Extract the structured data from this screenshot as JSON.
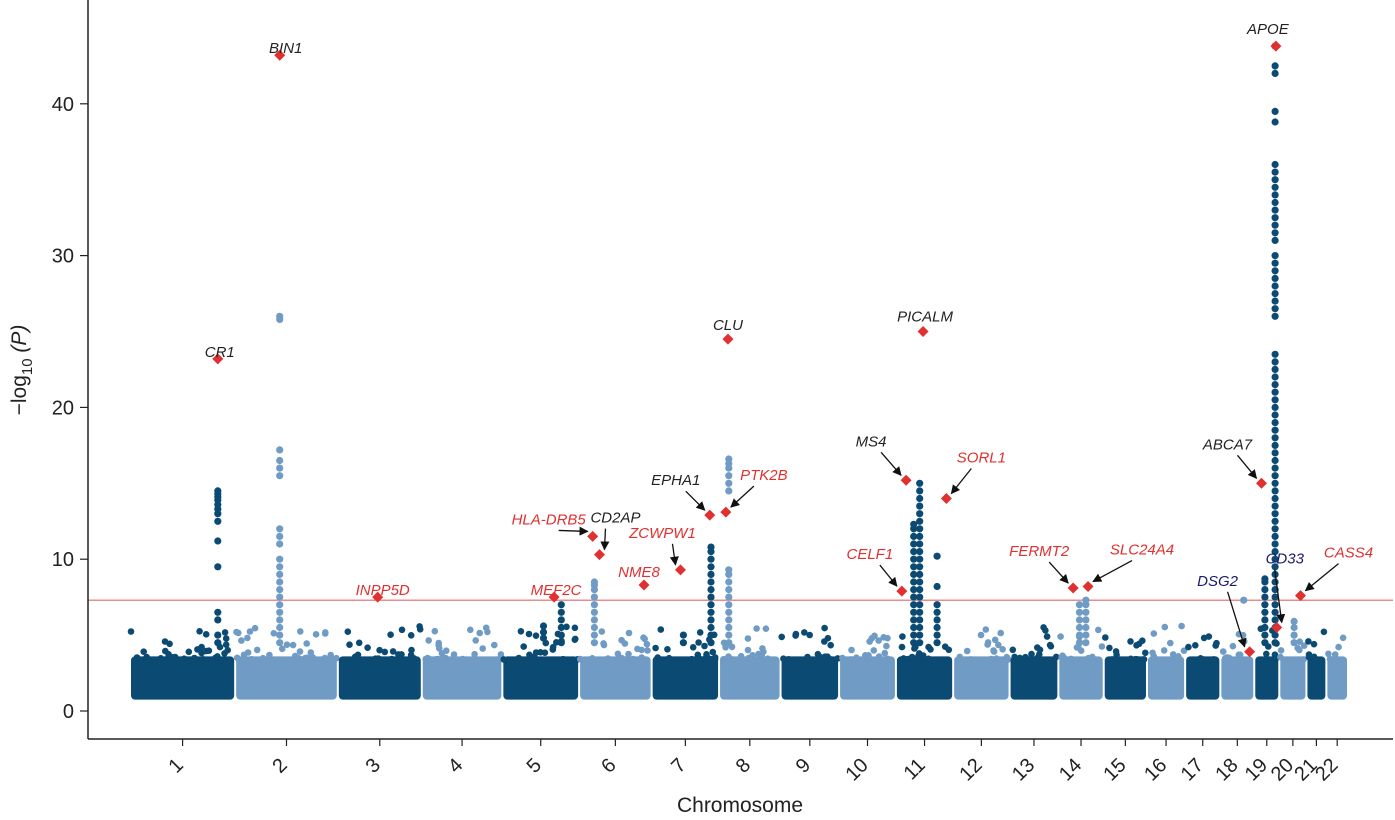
{
  "chart_data": {
    "type": "scatter",
    "subtype": "manhattan",
    "xlabel": "Chromosome",
    "ylabel_prefix": "−log",
    "ylabel_sub": "10",
    "ylabel_suffix": " (P)",
    "ylim": [
      0,
      46
    ],
    "yticks": [
      0,
      10,
      20,
      30,
      40
    ],
    "significance_line": 7.3,
    "grid": false,
    "colors": {
      "dark": "#0b4a73",
      "light": "#6f9bc4",
      "significance": "#e06666",
      "highlight": "#e03030",
      "label_red": "#e03030",
      "label_black": "#222222",
      "label_navy": "#1a1a6e"
    },
    "chromosomes": [
      {
        "label": "1",
        "start": 0,
        "end": 248,
        "color": "dark"
      },
      {
        "label": "2",
        "start": 248,
        "end": 490,
        "color": "light"
      },
      {
        "label": "3",
        "start": 490,
        "end": 688,
        "color": "dark"
      },
      {
        "label": "4",
        "start": 688,
        "end": 878,
        "color": "light"
      },
      {
        "label": "5",
        "start": 878,
        "end": 1059,
        "color": "dark"
      },
      {
        "label": "6",
        "start": 1059,
        "end": 1230,
        "color": "light"
      },
      {
        "label": "7",
        "start": 1230,
        "end": 1389,
        "color": "dark"
      },
      {
        "label": "8",
        "start": 1389,
        "end": 1534,
        "color": "light"
      },
      {
        "label": "9",
        "start": 1534,
        "end": 1672,
        "color": "dark"
      },
      {
        "label": "10",
        "start": 1672,
        "end": 1806,
        "color": "light"
      },
      {
        "label": "11",
        "start": 1806,
        "end": 1941,
        "color": "dark"
      },
      {
        "label": "12",
        "start": 1941,
        "end": 2074,
        "color": "light"
      },
      {
        "label": "13",
        "start": 2074,
        "end": 2189,
        "color": "dark"
      },
      {
        "label": "14",
        "start": 2189,
        "end": 2296,
        "color": "light"
      },
      {
        "label": "15",
        "start": 2296,
        "end": 2398,
        "color": "dark"
      },
      {
        "label": "16",
        "start": 2398,
        "end": 2488,
        "color": "light"
      },
      {
        "label": "17",
        "start": 2488,
        "end": 2571,
        "color": "dark"
      },
      {
        "label": "18",
        "start": 2571,
        "end": 2651,
        "color": "light"
      },
      {
        "label": "19",
        "start": 2651,
        "end": 2710,
        "color": "dark"
      },
      {
        "label": "20",
        "start": 2710,
        "end": 2774,
        "color": "light"
      },
      {
        "label": "21",
        "start": 2774,
        "end": 2821,
        "color": "dark"
      },
      {
        "label": "22",
        "start": 2821,
        "end": 2872,
        "color": "light"
      }
    ],
    "peaks": [
      {
        "pos": 207,
        "values": [
          4.5,
          5.0,
          6.0,
          6.5,
          9.5,
          11.2,
          12.5,
          13.0,
          13.3,
          13.6,
          13.9,
          14.1,
          14.3,
          14.5
        ]
      },
      {
        "pos": 353,
        "values": [
          4.5,
          5.0,
          5.5,
          6.0,
          6.5,
          7.0,
          7.5,
          8.0,
          8.5,
          9.0,
          9.5,
          10.0,
          11.0,
          11.5,
          12.0,
          15.5,
          16.0,
          16.5,
          17.2,
          25.8,
          26.0
        ]
      },
      {
        "pos": 975,
        "values": [
          4.8,
          5.2,
          5.6
        ]
      },
      {
        "pos": 1017,
        "values": [
          4.5,
          5.0,
          5.5,
          6.0,
          6.5,
          7.0
        ]
      },
      {
        "pos": 1095,
        "values": [
          4.5,
          5.0,
          5.5,
          6.0,
          6.5,
          7.0,
          7.5,
          8.0,
          8.3,
          8.5
        ]
      },
      {
        "pos": 1305,
        "values": [
          4.5,
          5.0
        ]
      },
      {
        "pos": 1370,
        "values": [
          4.5,
          5.0,
          5.5,
          6.0,
          6.5,
          7.0,
          7.5,
          8.0,
          8.5,
          9.0,
          9.5,
          10.0,
          10.5,
          10.8
        ]
      },
      {
        "pos": 1412,
        "values": [
          4.5,
          5.0,
          5.5,
          6.0,
          6.5,
          7.0,
          7.5,
          8.0,
          8.5,
          9.0,
          9.3,
          14.5,
          15.0,
          15.5,
          16.0,
          16.3,
          16.6
        ]
      },
      {
        "pos": 1848,
        "values": [
          4.5,
          5.0,
          5.5,
          6.0,
          6.5,
          7.0,
          7.5,
          8.0,
          8.5,
          9.0,
          9.5,
          10.0,
          10.5,
          11.0,
          11.5,
          12.0,
          12.3
        ]
      },
      {
        "pos": 1862,
        "values": [
          4.5,
          5.0,
          5.5,
          6.0,
          6.5,
          7.0,
          7.5,
          8.0,
          8.5,
          9.0,
          9.5,
          10.0,
          10.5,
          11.0,
          11.5,
          12.0,
          12.5,
          13.0,
          13.5,
          14.0,
          14.5,
          15.0
        ]
      },
      {
        "pos": 1903,
        "values": [
          4.5,
          5.0,
          5.5,
          6.0,
          6.5,
          7.0,
          8.2,
          10.2
        ]
      },
      {
        "pos": 2239,
        "values": [
          4.5,
          5.0,
          5.5,
          6.0,
          6.5,
          7.0
        ]
      },
      {
        "pos": 2254,
        "values": [
          4.5,
          5.0,
          5.5,
          6.0,
          6.5,
          7.0,
          7.3
        ]
      },
      {
        "pos": 2626,
        "values": [
          7.3
        ]
      },
      {
        "pos": 2676,
        "values": [
          4.5,
          5.0,
          5.5,
          6.0,
          6.5,
          7.0,
          7.5,
          8.0,
          8.5,
          8.7
        ]
      },
      {
        "pos": 2700,
        "values": [
          4.5,
          5.0,
          5.5,
          6.0,
          6.5,
          7.0,
          7.5,
          8.0,
          8.5,
          9.0,
          9.5,
          10.0,
          10.5,
          11.0,
          11.5,
          12.0,
          12.5,
          13.0,
          13.5,
          14.0,
          14.5,
          15.0,
          15.5,
          16.0,
          16.5,
          17.0,
          17.5,
          18.0,
          18.5,
          19.0,
          19.5,
          20.0,
          20.5,
          21.0,
          21.5,
          22.0,
          22.5,
          23.0,
          23.5,
          26.0,
          26.5,
          27.0,
          27.5,
          28.0,
          28.5,
          29.0,
          29.5,
          30.0,
          31.0,
          31.5,
          32.0,
          32.5,
          33.0,
          33.5,
          34.0,
          34.5,
          35.0,
          35.5,
          36.0,
          38.8,
          39.5,
          42.0,
          42.5,
          43.8
        ]
      },
      {
        "pos": 2745,
        "values": [
          4.5,
          5.0,
          5.5,
          5.9
        ]
      }
    ],
    "genes": [
      {
        "name": "BIN1",
        "pos": 353,
        "value": 43.2,
        "color": "label_black",
        "label_dx": 6,
        "label_dy": -2,
        "arrow": false
      },
      {
        "name": "CR1",
        "pos": 207,
        "value": 23.2,
        "color": "label_black",
        "label_dx": 2,
        "label_dy": -2,
        "arrow": false
      },
      {
        "name": "INPP5D",
        "pos": 584,
        "value": 7.5,
        "color": "label_red",
        "label_dx": 5,
        "label_dy": -2,
        "arrow": false
      },
      {
        "name": "MEF2C",
        "pos": 1000,
        "value": 7.5,
        "color": "label_red",
        "label_dx": 2,
        "label_dy": -2,
        "arrow": false
      },
      {
        "name": "HLA-DRB5",
        "pos": 1091,
        "value": 11.5,
        "color": "label_red",
        "label_dx": -44,
        "label_dy": -12,
        "arrow": true
      },
      {
        "name": "CD2AP",
        "pos": 1107,
        "value": 10.3,
        "color": "label_black",
        "label_dx": 16,
        "label_dy": -32,
        "arrow": true
      },
      {
        "name": "EPHA1",
        "pos": 1367,
        "value": 12.9,
        "color": "label_black",
        "label_dx": -34,
        "label_dy": -30,
        "arrow": true
      },
      {
        "name": "PTK2B",
        "pos": 1405,
        "value": 13.1,
        "color": "label_red",
        "label_dx": 38,
        "label_dy": -32,
        "arrow": true
      },
      {
        "name": "ZCWPW1",
        "pos": 1298,
        "value": 9.3,
        "color": "label_red",
        "label_dx": -18,
        "label_dy": -32,
        "arrow": true
      },
      {
        "name": "NME8",
        "pos": 1212,
        "value": 8.3,
        "color": "label_red",
        "label_dx": -5,
        "label_dy": -8,
        "arrow": false
      },
      {
        "name": "CLU",
        "pos": 1410,
        "value": 24.5,
        "color": "label_black",
        "label_dx": 0,
        "label_dy": -9,
        "arrow": false
      },
      {
        "name": "PICALM",
        "pos": 1870,
        "value": 25.0,
        "color": "label_black",
        "label_dx": 2,
        "label_dy": -10,
        "arrow": false
      },
      {
        "name": "MS4",
        "pos": 1830,
        "value": 15.2,
        "color": "label_black",
        "label_dx": -35,
        "label_dy": -34,
        "arrow": true
      },
      {
        "name": "SORL1",
        "pos": 1925,
        "value": 14.0,
        "color": "label_red",
        "label_dx": 35,
        "label_dy": -36,
        "arrow": true
      },
      {
        "name": "CELF1",
        "pos": 1820,
        "value": 7.9,
        "color": "label_red",
        "label_dx": -32,
        "label_dy": -32,
        "arrow": true
      },
      {
        "name": "FERMT2",
        "pos": 2224,
        "value": 8.1,
        "color": "label_red",
        "label_dx": -34,
        "label_dy": -32,
        "arrow": true
      },
      {
        "name": "SLC24A4",
        "pos": 2259,
        "value": 8.2,
        "color": "label_red",
        "label_dx": 54,
        "label_dy": -32,
        "arrow": true
      },
      {
        "name": "DSG2",
        "pos": 2640,
        "value": 3.9,
        "color": "label_navy",
        "label_dx": -32,
        "label_dy": -66,
        "arrow": true
      },
      {
        "name": "CD33",
        "pos": 2704,
        "value": 5.5,
        "color": "label_navy",
        "label_dx": 8,
        "label_dy": -64,
        "arrow": true
      },
      {
        "name": "CASS4",
        "pos": 2760,
        "value": 7.6,
        "color": "label_red",
        "label_dx": 48,
        "label_dy": -38,
        "arrow": true
      },
      {
        "name": "ABCA7",
        "pos": 2668,
        "value": 15.0,
        "color": "label_black",
        "label_dx": -34,
        "label_dy": -34,
        "arrow": true
      },
      {
        "name": "APOE",
        "pos": 2702,
        "value": 43.8,
        "color": "label_black",
        "label_dx": -8,
        "label_dy": -12,
        "arrow": false
      }
    ]
  }
}
